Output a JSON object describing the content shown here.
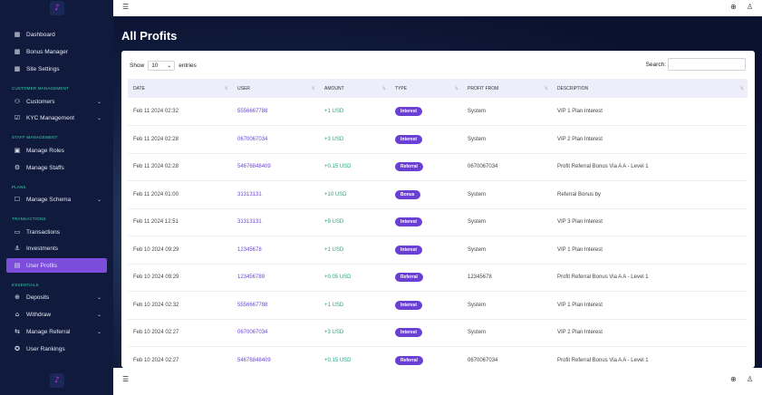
{
  "sidebar": {
    "logo_icon": "logo-icon",
    "items": [
      {
        "label": "Dashboard",
        "icon": "grid-icon"
      },
      {
        "label": "Bonus Manager",
        "icon": "grid-icon"
      },
      {
        "label": "Site Settings",
        "icon": "grid-icon"
      },
      {
        "label": "Customers",
        "icon": "users-icon"
      },
      {
        "label": "KYC Management",
        "icon": "check-square-icon"
      },
      {
        "label": "Manage Roles",
        "icon": "id-card-icon"
      },
      {
        "label": "Manage Staffs",
        "icon": "user-gear-icon"
      },
      {
        "label": "Manage Schema",
        "icon": "checkbox-icon"
      },
      {
        "label": "Transactions",
        "icon": "card-icon"
      },
      {
        "label": "Investments",
        "icon": "anchor-icon"
      },
      {
        "label": "User Profits",
        "icon": "wallet-icon"
      },
      {
        "label": "Deposits",
        "icon": "plus-circle-icon"
      },
      {
        "label": "Withdraw",
        "icon": "bank-icon"
      },
      {
        "label": "Manage Referral",
        "icon": "referral-icon"
      },
      {
        "label": "User Rankings",
        "icon": "award-icon"
      }
    ],
    "sections": {
      "customer": "CUSTOMER MANAGEMENT",
      "staff": "STAFF MANAGEMENT",
      "plans": "PLANS",
      "transactions": "TRANSACTIONS",
      "essentials": "ESSENTIALS"
    }
  },
  "topbar": {
    "menu_icon": "hamburger-icon",
    "globe_icon": "globe-icon",
    "user_icon": "user-icon"
  },
  "page": {
    "title": "All Profits"
  },
  "table_controls": {
    "show_label": "Show",
    "page_size": "10",
    "entries_label": "entries",
    "search_label": "Search:",
    "search_value": ""
  },
  "table": {
    "headers": [
      "DATE",
      "USER",
      "AMOUNT",
      "TYPE",
      "PROFIT FROM",
      "DESCRIPTION"
    ],
    "rows": [
      {
        "date": "Feb 11 2024 02:32",
        "user": "5556667788",
        "amount": "+1 USD",
        "type": "Interest",
        "from": "System",
        "desc": "VIP 1 Plan Interest"
      },
      {
        "date": "Feb 11 2024 02:28",
        "user": "0670067034",
        "amount": "+3 USD",
        "type": "Interest",
        "from": "System",
        "desc": "VIP 2 Plan Interest"
      },
      {
        "date": "Feb 11 2024 02:28",
        "user": "54676848409",
        "amount": "+0.15 USD",
        "type": "Referral",
        "from": "0670067034",
        "desc": "Profit Referral Bonus Via A A - Level 1"
      },
      {
        "date": "Feb 11 2024 01:00",
        "user": "31313131",
        "amount": "+10 USD",
        "type": "Bonus",
        "from": "System",
        "desc": "Referral Bonus by"
      },
      {
        "date": "Feb 11 2024 12:51",
        "user": "31313131",
        "amount": "+9 USD",
        "type": "Interest",
        "from": "System",
        "desc": "VIP 3 Plan Interest"
      },
      {
        "date": "Feb 10 2024 09:29",
        "user": "12345678",
        "amount": "+1 USD",
        "type": "Interest",
        "from": "System",
        "desc": "VIP 1 Plan Interest"
      },
      {
        "date": "Feb 10 2024 09:29",
        "user": "123456789",
        "amount": "+0.05 USD",
        "type": "Referral",
        "from": "12345678",
        "desc": "Profit Referral Bonus Via A A - Level 1"
      },
      {
        "date": "Feb 10 2024 02:32",
        "user": "5556667788",
        "amount": "+1 USD",
        "type": "Interest",
        "from": "System",
        "desc": "VIP 1 Plan Interest"
      },
      {
        "date": "Feb 10 2024 02:27",
        "user": "0670067034",
        "amount": "+3 USD",
        "type": "Interest",
        "from": "System",
        "desc": "VIP 2 Plan Interest"
      },
      {
        "date": "Feb 10 2024 02:27",
        "user": "54676848409",
        "amount": "+0.15 USD",
        "type": "Referral",
        "from": "0670067034",
        "desc": "Profit Referral Bonus Via A A - Level 1"
      }
    ]
  },
  "colors": {
    "accent": "#7c4ddb",
    "link": "#6a45d8",
    "positive": "#26a683",
    "sidebar_bg": "#0f1a3d",
    "section_label": "#37d2a8"
  }
}
